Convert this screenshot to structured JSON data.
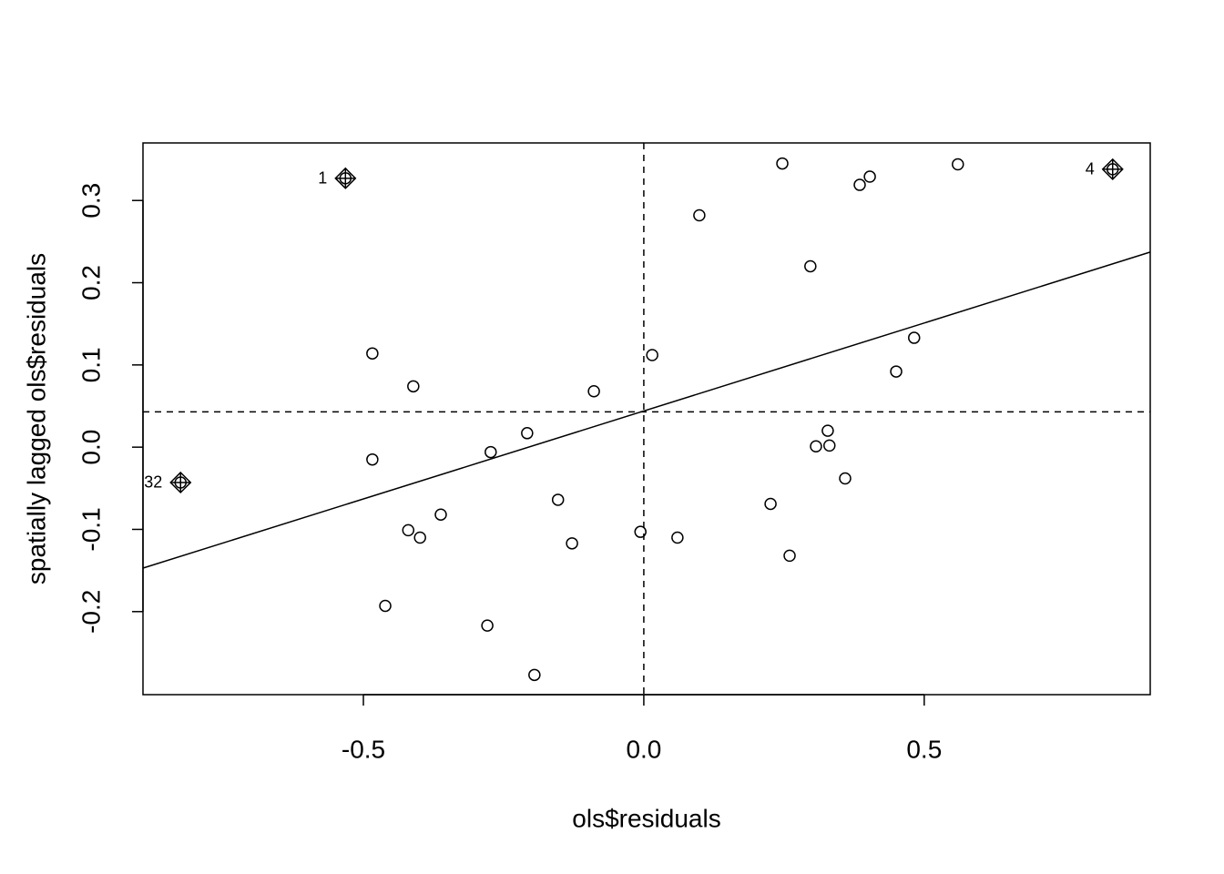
{
  "chart_data": {
    "type": "scatter",
    "x_label": "ols$residuals",
    "y_label": "spatially lagged ols$residuals",
    "xlim": [
      -0.893,
      0.903
    ],
    "ylim": [
      -0.301,
      0.37
    ],
    "xticks": [
      -0.5,
      {
        "value": 0,
        "label": "0.0"
      },
      0.5
    ],
    "yticks": [
      -0.2,
      -0.1,
      {
        "value": 0,
        "label": "0.0"
      },
      0.1,
      0.2,
      0.3
    ],
    "x": [
      -0.532,
      0.836,
      -0.826,
      0.247,
      0.56,
      0.403,
      0.385,
      0.099,
      0.297,
      -0.484,
      0.482,
      0.015,
      0.45,
      -0.411,
      -0.089,
      -0.208,
      0.328,
      0.307,
      0.331,
      -0.273,
      -0.484,
      0.359,
      -0.153,
      0.226,
      -0.362,
      -0.42,
      -0.006,
      -0.399,
      0.06,
      -0.128,
      0.26,
      -0.461,
      -0.279,
      -0.195
    ],
    "y": [
      0.327,
      0.338,
      -0.043,
      0.345,
      0.344,
      0.329,
      0.319,
      0.282,
      0.22,
      0.114,
      0.133,
      0.112,
      0.092,
      0.074,
      0.068,
      0.017,
      0.02,
      0.001,
      0.002,
      -0.006,
      -0.015,
      -0.038,
      -0.064,
      -0.069,
      -0.082,
      -0.101,
      -0.103,
      -0.11,
      -0.11,
      -0.117,
      -0.132,
      -0.193,
      -0.217,
      -0.277
    ],
    "point_labels": [
      "1",
      "4",
      "32",
      null,
      null,
      null,
      null,
      null,
      null,
      null,
      null,
      null,
      null,
      null,
      null,
      null,
      null,
      null,
      null,
      null,
      null,
      null,
      null,
      null,
      null,
      null,
      null,
      null,
      null,
      null,
      null,
      null,
      null,
      null
    ],
    "mean_x": 0,
    "mean_y": 0.043,
    "fit_line": {
      "slope": 0.214,
      "intercept": 0.044
    }
  }
}
